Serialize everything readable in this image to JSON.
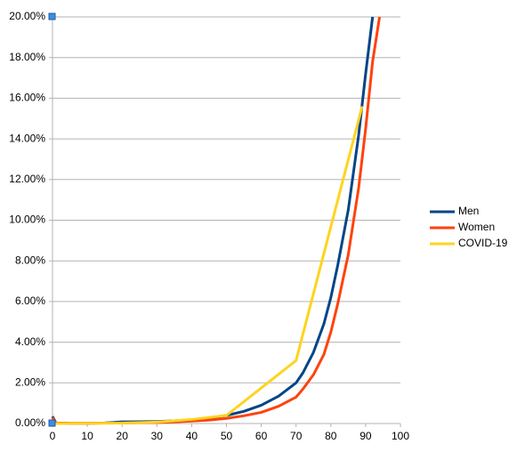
{
  "chart_data": {
    "type": "line",
    "x": [
      0,
      1,
      5,
      10,
      15,
      20,
      25,
      30,
      35,
      40,
      45,
      50,
      55,
      60,
      65,
      70,
      72,
      75,
      78,
      80,
      82,
      85,
      88,
      89,
      90,
      92,
      94
    ],
    "series": [
      {
        "name": "Men",
        "color": "#004586",
        "values": [
          0.35,
          0.03,
          0.01,
          0.01,
          0.03,
          0.08,
          0.09,
          0.1,
          0.13,
          0.18,
          0.27,
          0.4,
          0.6,
          0.9,
          1.35,
          2.0,
          2.5,
          3.5,
          4.9,
          6.2,
          7.8,
          10.5,
          14.2,
          null,
          17.2,
          20.0,
          null
        ]
      },
      {
        "name": "Women",
        "color": "#ff420e",
        "values": [
          0.3,
          0.03,
          0.01,
          0.01,
          0.02,
          0.03,
          0.04,
          0.05,
          0.08,
          0.12,
          0.17,
          0.25,
          0.38,
          0.55,
          0.85,
          1.3,
          1.7,
          2.4,
          3.4,
          4.5,
          5.9,
          8.3,
          11.6,
          null,
          14.5,
          17.8,
          20.0
        ]
      },
      {
        "name": "COVID-19",
        "color": "#ffd320",
        "values": [
          0,
          null,
          null,
          0.01,
          null,
          0.02,
          null,
          0.07,
          null,
          0.2,
          null,
          0.4,
          null,
          null,
          null,
          3.1,
          null,
          null,
          null,
          null,
          null,
          null,
          null,
          15.6,
          null,
          null,
          null
        ]
      }
    ],
    "xlim": [
      0,
      100
    ],
    "xticks": [
      0,
      10,
      20,
      30,
      40,
      50,
      60,
      70,
      80,
      90,
      100
    ],
    "ylim": [
      0,
      20
    ],
    "yticks": [
      {
        "value": 0,
        "label": "0.00%"
      },
      {
        "value": 2,
        "label": "2.00%"
      },
      {
        "value": 4,
        "label": "4.00%"
      },
      {
        "value": 6,
        "label": "6.00%"
      },
      {
        "value": 8,
        "label": "8.00%"
      },
      {
        "value": 10,
        "label": "10.00%"
      },
      {
        "value": 12,
        "label": "12.00%"
      },
      {
        "value": 14,
        "label": "14.00%"
      },
      {
        "value": 16,
        "label": "16.00%"
      },
      {
        "value": 18,
        "label": "18.00%"
      },
      {
        "value": 20,
        "label": "20.00%"
      }
    ],
    "grid": true,
    "legend": "right"
  }
}
